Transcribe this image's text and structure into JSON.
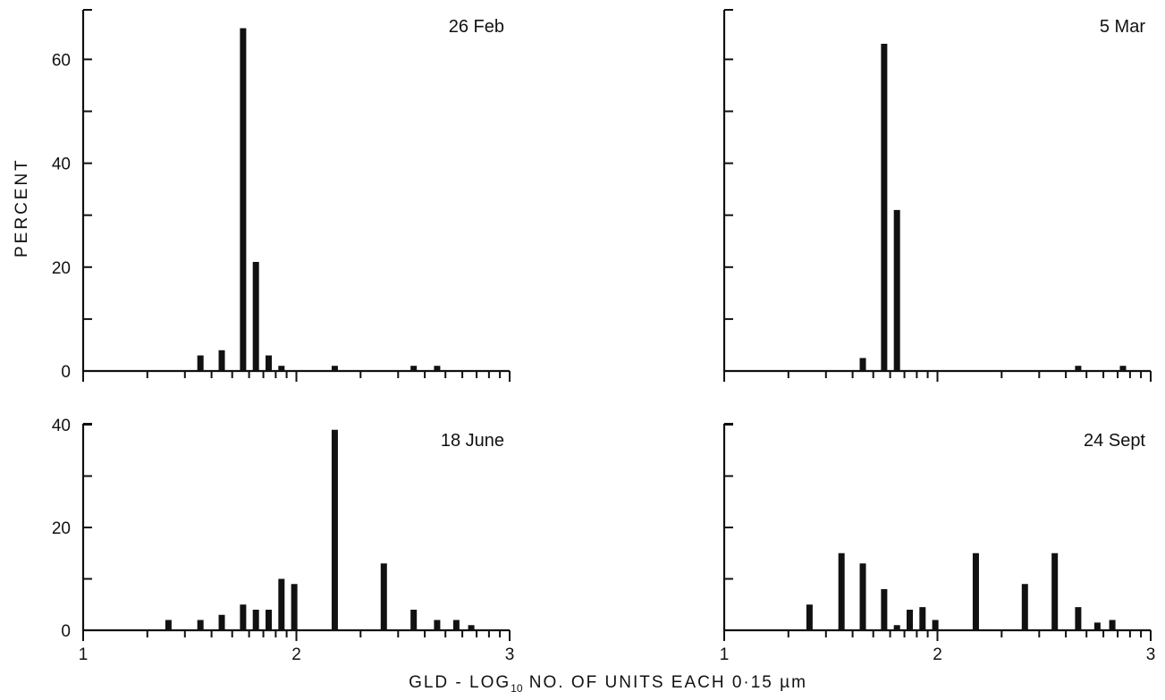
{
  "figure": {
    "ylabel": "PERCENT",
    "xlabel": {
      "prefix": "GLD - LOG",
      "subscript": "10",
      "suffix": " NO.  OF  UNITS  EACH  0·15  µm"
    }
  },
  "chart_data": [
    {
      "type": "bar",
      "title": "26 Feb",
      "xlim": [
        1,
        3
      ],
      "ylim": [
        0,
        60
      ],
      "yticks": [
        0,
        20,
        40,
        60
      ],
      "xticks": [],
      "points": [
        {
          "x": 1.55,
          "y": 3
        },
        {
          "x": 1.65,
          "y": 4
        },
        {
          "x": 1.75,
          "y": 66
        },
        {
          "x": 1.81,
          "y": 21
        },
        {
          "x": 1.87,
          "y": 3
        },
        {
          "x": 1.93,
          "y": 1
        },
        {
          "x": 2.18,
          "y": 1
        },
        {
          "x": 2.55,
          "y": 1
        },
        {
          "x": 2.66,
          "y": 1
        }
      ]
    },
    {
      "type": "bar",
      "title": "5 Mar",
      "xlim": [
        1,
        3
      ],
      "ylim": [
        0,
        60
      ],
      "yticks": [
        0,
        20,
        40,
        60
      ],
      "xticks": [],
      "points": [
        {
          "x": 1.65,
          "y": 2.5
        },
        {
          "x": 1.75,
          "y": 63
        },
        {
          "x": 1.81,
          "y": 31
        },
        {
          "x": 2.66,
          "y": 1
        },
        {
          "x": 2.87,
          "y": 1
        }
      ]
    },
    {
      "type": "bar",
      "title": "18 June",
      "xlim": [
        1,
        3
      ],
      "ylim": [
        0,
        40
      ],
      "yticks": [
        0,
        20,
        40
      ],
      "xticks": [
        1,
        2,
        3
      ],
      "points": [
        {
          "x": 1.4,
          "y": 2
        },
        {
          "x": 1.55,
          "y": 2
        },
        {
          "x": 1.65,
          "y": 3
        },
        {
          "x": 1.75,
          "y": 5
        },
        {
          "x": 1.81,
          "y": 4
        },
        {
          "x": 1.87,
          "y": 4
        },
        {
          "x": 1.93,
          "y": 10
        },
        {
          "x": 1.99,
          "y": 9
        },
        {
          "x": 2.18,
          "y": 39
        },
        {
          "x": 2.41,
          "y": 13
        },
        {
          "x": 2.55,
          "y": 4
        },
        {
          "x": 2.66,
          "y": 2
        },
        {
          "x": 2.75,
          "y": 2
        },
        {
          "x": 2.82,
          "y": 1
        }
      ]
    },
    {
      "type": "bar",
      "title": "24 Sept",
      "xlim": [
        1,
        3
      ],
      "ylim": [
        0,
        40
      ],
      "yticks": [
        0,
        20,
        40
      ],
      "xticks": [
        1,
        2,
        3
      ],
      "points": [
        {
          "x": 1.4,
          "y": 5
        },
        {
          "x": 1.55,
          "y": 15
        },
        {
          "x": 1.65,
          "y": 13
        },
        {
          "x": 1.75,
          "y": 8
        },
        {
          "x": 1.81,
          "y": 1
        },
        {
          "x": 1.87,
          "y": 4
        },
        {
          "x": 1.93,
          "y": 4.5
        },
        {
          "x": 1.99,
          "y": 2
        },
        {
          "x": 2.18,
          "y": 15
        },
        {
          "x": 2.41,
          "y": 9
        },
        {
          "x": 2.55,
          "y": 15
        },
        {
          "x": 2.66,
          "y": 4.5
        },
        {
          "x": 2.75,
          "y": 1.5
        },
        {
          "x": 2.82,
          "y": 2
        }
      ]
    }
  ]
}
